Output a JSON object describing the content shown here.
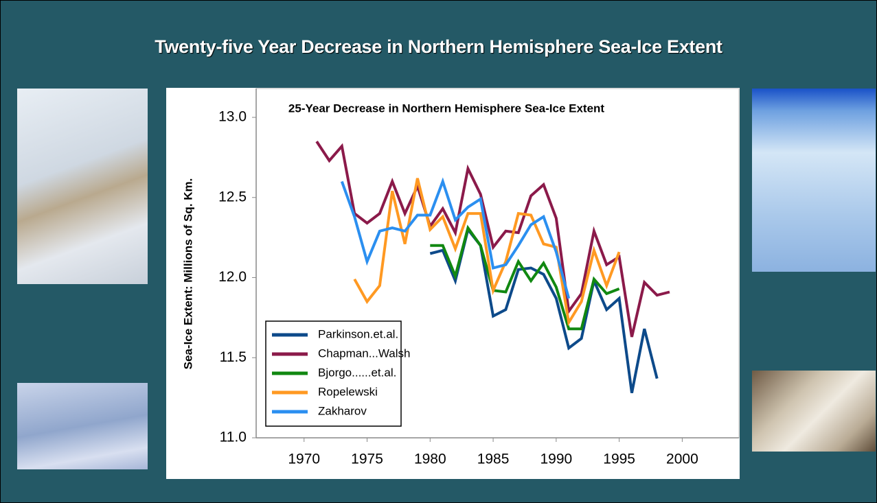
{
  "header": {
    "title": "Twenty-five Year Decrease in Northern Hemisphere Sea-Ice Extent"
  },
  "chart_data": {
    "type": "line",
    "title": "25-Year Decrease in Northern Hemisphere Sea-Ice Extent",
    "y_label": "Sea-Ice Extent: Millions of Sq. Km.",
    "xlim": [
      1966.2,
      2004.5
    ],
    "xticks": [
      1970,
      1975,
      1980,
      1985,
      1990,
      1995,
      2000
    ],
    "ylim": [
      11.0,
      13.18
    ],
    "yticks": [
      {
        "value": 11,
        "label": "11.0"
      },
      {
        "value": 11.5,
        "label": "11.5"
      },
      {
        "value": 12,
        "label": "12.0"
      },
      {
        "value": 12.5,
        "label": "12.5"
      },
      {
        "value": 13,
        "label": "13.0"
      }
    ],
    "grid": false,
    "legend": "lower-left",
    "series": [
      {
        "name": "Parkinson.et.al.",
        "color": "#0d4a8a",
        "x": [
          1980,
          1981,
          1982,
          1983,
          1984,
          1985,
          1986,
          1987,
          1988,
          1989,
          1990,
          1991,
          1992,
          1993,
          1994,
          1995,
          1996,
          1997,
          1998
        ],
        "values": [
          12.15,
          12.17,
          11.98,
          12.3,
          12.2,
          11.76,
          11.8,
          12.05,
          12.06,
          12.02,
          11.87,
          11.56,
          11.62,
          11.98,
          11.8,
          11.87,
          11.28,
          11.68,
          11.37
        ]
      },
      {
        "name": "Chapman...Walsh",
        "color": "#8b1a4a",
        "x": [
          1971,
          1972,
          1973,
          1974,
          1975,
          1976,
          1977,
          1978,
          1979,
          1980,
          1981,
          1982,
          1983,
          1984,
          1985,
          1986,
          1987,
          1988,
          1989,
          1990,
          1991,
          1992,
          1993,
          1994,
          1995,
          1996,
          1997,
          1998,
          1999
        ],
        "values": [
          12.85,
          12.73,
          12.82,
          12.4,
          12.34,
          12.4,
          12.6,
          12.4,
          12.57,
          12.32,
          12.43,
          12.28,
          12.68,
          12.52,
          12.19,
          12.29,
          12.28,
          12.51,
          12.58,
          12.37,
          11.79,
          11.9,
          12.29,
          12.08,
          12.13,
          11.63,
          11.97,
          11.89,
          11.91
        ]
      },
      {
        "name": "Bjorgo......et.al.",
        "color": "#118811",
        "x": [
          1980,
          1981,
          1982,
          1983,
          1984,
          1985,
          1986,
          1987,
          1988,
          1989,
          1990,
          1991,
          1992,
          1993,
          1994,
          1995
        ],
        "values": [
          12.2,
          12.2,
          12.01,
          12.31,
          12.2,
          11.92,
          11.91,
          12.1,
          11.98,
          12.09,
          11.94,
          11.68,
          11.68,
          11.99,
          11.9,
          11.93
        ]
      },
      {
        "name": "Ropelewski",
        "color": "#ff9922",
        "x": [
          1974,
          1975,
          1976,
          1977,
          1978,
          1979,
          1980,
          1981,
          1982,
          1983,
          1984,
          1985,
          1986,
          1987,
          1988,
          1989,
          1990,
          1991,
          1992,
          1993,
          1994,
          1995
        ],
        "values": [
          11.99,
          11.85,
          11.95,
          12.54,
          12.21,
          12.62,
          12.3,
          12.38,
          12.18,
          12.4,
          12.4,
          11.92,
          12.1,
          12.4,
          12.39,
          12.21,
          12.19,
          11.72,
          11.85,
          12.17,
          11.95,
          12.16
        ]
      },
      {
        "name": "Zakharov",
        "color": "#2b8ff0",
        "x": [
          1973,
          1974,
          1975,
          1976,
          1977,
          1978,
          1979,
          1980,
          1981,
          1982,
          1983,
          1984,
          1985,
          1986,
          1987,
          1988,
          1989,
          1990,
          1991
        ],
        "values": [
          12.6,
          12.38,
          12.1,
          12.29,
          12.31,
          12.29,
          12.39,
          12.39,
          12.6,
          12.36,
          12.44,
          12.49,
          12.06,
          12.08,
          12.2,
          12.33,
          12.38,
          12.16,
          11.87
        ]
      }
    ]
  }
}
